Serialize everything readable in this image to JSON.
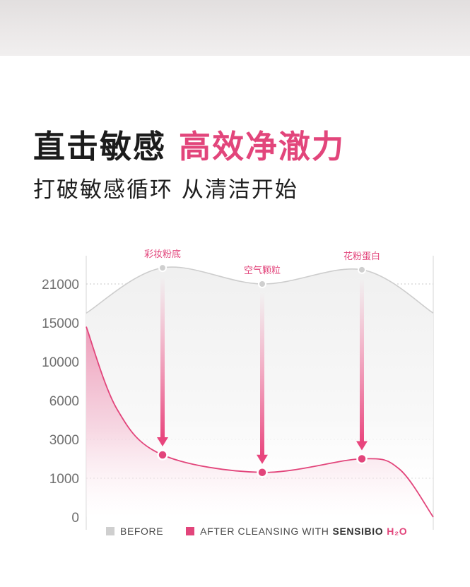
{
  "headline": {
    "dark": "直击敏感",
    "pink": "高效净澈力"
  },
  "subline": "打破敏感循环 从清洁开始",
  "colors": {
    "accent": "#e2457b",
    "before": "#cfcfcf",
    "text": "#1c1c1c"
  },
  "legend": {
    "before": "BEFORE",
    "after": "AFTER CLEANSING WITH",
    "brand": "SENSIBIO",
    "brand_suffix": "H₂O"
  },
  "chart_data": {
    "type": "area",
    "y_ticks": [
      "0",
      "1000",
      "3000",
      "6000",
      "10000",
      "15000",
      "21000"
    ],
    "categories": [
      "彩妆粉底",
      "空气颗粒",
      "花粉蛋白"
    ],
    "series": [
      {
        "name": "BEFORE",
        "values": [
          23500,
          21000,
          23200
        ],
        "start": 16500,
        "end": 16500
      },
      {
        "name": "AFTER CLEANSING WITH SENSIBIO H₂O",
        "values": [
          2200,
          1300,
          2000
        ],
        "start": 14500,
        "end": 0
      }
    ],
    "grid": true,
    "legend_position": "bottom"
  }
}
